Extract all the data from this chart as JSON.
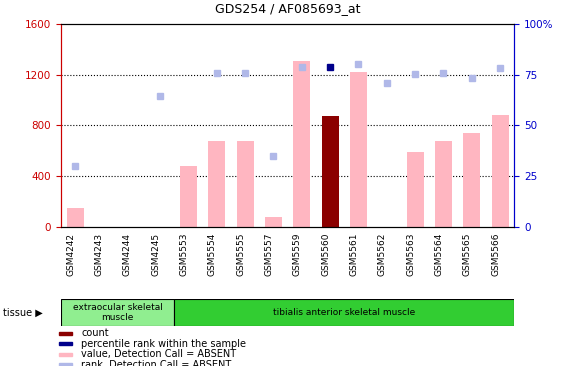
{
  "title": "GDS254 / AF085693_at",
  "categories": [
    "GSM4242",
    "GSM4243",
    "GSM4244",
    "GSM4245",
    "GSM5553",
    "GSM5554",
    "GSM5555",
    "GSM5557",
    "GSM5559",
    "GSM5560",
    "GSM5561",
    "GSM5562",
    "GSM5563",
    "GSM5564",
    "GSM5565",
    "GSM5566"
  ],
  "tissue_groups": [
    {
      "label": "extraocular skeletal\nmuscle",
      "start": 0,
      "end": 4,
      "color": "#90ee90"
    },
    {
      "label": "tibialis anterior skeletal muscle",
      "start": 4,
      "end": 16,
      "color": "#32cd32"
    }
  ],
  "bar_values": [
    150,
    0,
    0,
    0,
    480,
    680,
    680,
    75,
    1310,
    870,
    1220,
    0,
    590,
    680,
    740,
    880
  ],
  "bar_colors": [
    "#ffb6c1",
    "#ffb6c1",
    "#ffb6c1",
    "#ffb6c1",
    "#ffb6c1",
    "#ffb6c1",
    "#ffb6c1",
    "#ffb6c1",
    "#ffb6c1",
    "#8b0000",
    "#ffb6c1",
    "#ffb6c1",
    "#ffb6c1",
    "#ffb6c1",
    "#ffb6c1",
    "#ffb6c1"
  ],
  "rank_values": [
    480,
    null,
    null,
    1030,
    null,
    1210,
    1215,
    560,
    1260,
    null,
    1280,
    1135,
    1205,
    1215,
    1170,
    1250
  ],
  "percentile_values": [
    null,
    null,
    null,
    null,
    null,
    null,
    null,
    null,
    null,
    1260,
    null,
    null,
    null,
    null,
    null,
    null
  ],
  "ylim_left": [
    0,
    1600
  ],
  "ylim_right": [
    0,
    100
  ],
  "left_ticks": [
    0,
    400,
    800,
    1200,
    1600
  ],
  "right_ticks": [
    0,
    25,
    50,
    75,
    100
  ],
  "dotted_lines": [
    400,
    800,
    1200
  ],
  "left_color": "#cc0000",
  "right_color": "#0000cc",
  "xticklabel_bg": "#d0d0d0",
  "legend_items": [
    {
      "label": "count",
      "color": "#8b0000"
    },
    {
      "label": "percentile rank within the sample",
      "color": "#00008b"
    },
    {
      "label": "value, Detection Call = ABSENT",
      "color": "#ffb6c1"
    },
    {
      "label": "rank, Detection Call = ABSENT",
      "color": "#b0b8e8"
    }
  ]
}
